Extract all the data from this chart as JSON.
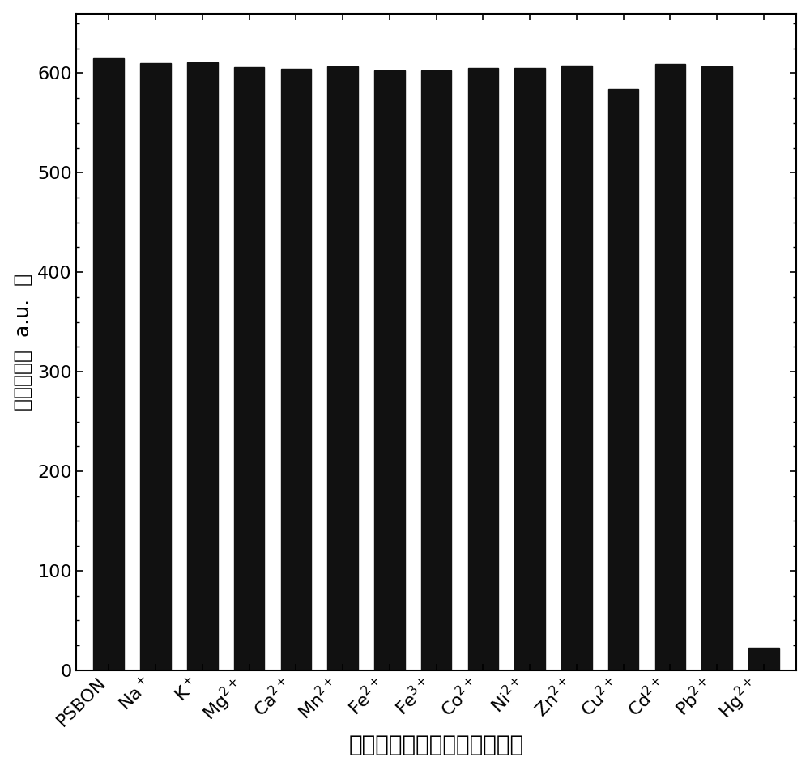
{
  "categories": [
    "PSBON",
    "Na$^+$",
    "K$^+$",
    "Mg$^{2+}$",
    "Ca$^{2+}$",
    "Mn$^{2+}$",
    "Fe$^{2+}$",
    "Fe$^{3+}$",
    "Co$^{2+}$",
    "Ni$^{2+}$",
    "Zn$^{2+}$",
    "Cu$^{2+}$",
    "Cd$^{2+}$",
    "Pb$^{2+}$",
    "Hg$^{2+}$"
  ],
  "values": [
    615,
    610,
    611,
    606,
    604,
    607,
    603,
    603,
    605,
    605,
    608,
    584,
    609,
    607,
    23
  ],
  "bar_color": "#111111",
  "xlabel": "功能化的聚苯乙烯和金属离子",
  "ylabel_chinese": "荧光强度（",
  "ylabel_au": "a.u.",
  "ylabel_close": "）",
  "ylim": [
    0,
    660
  ],
  "yticks": [
    0,
    100,
    200,
    300,
    400,
    500,
    600
  ],
  "background_color": "#ffffff",
  "bar_width": 0.65,
  "xlabel_fontsize": 20,
  "ylabel_fontsize": 18,
  "tick_fontsize": 16
}
